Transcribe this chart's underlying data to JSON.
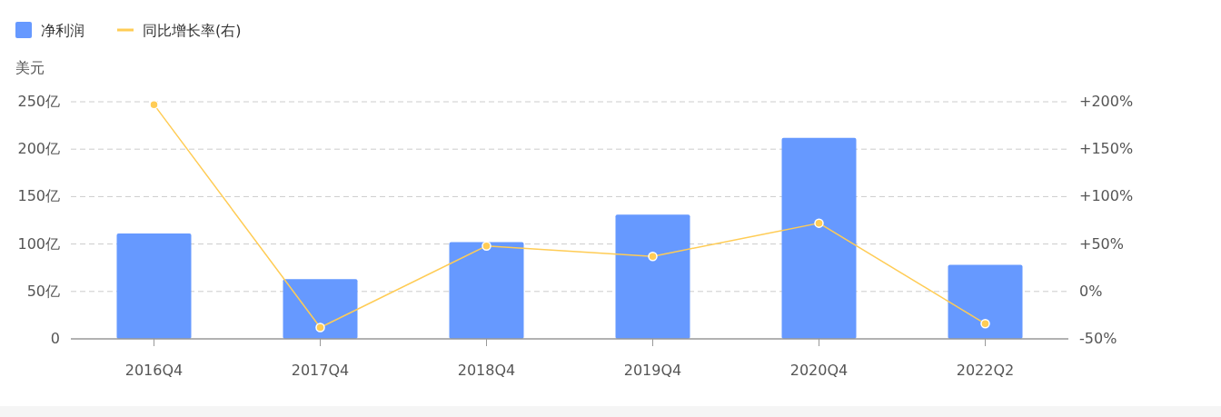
{
  "chart_data": {
    "type": "bar",
    "ylabel": "美元",
    "categories": [
      "2016Q4",
      "2017Q4",
      "2018Q4",
      "2019Q4",
      "2020Q4",
      "2022Q2"
    ],
    "series": [
      {
        "name": "净利润",
        "color": "#6699ff",
        "values": [
          111,
          63,
          102,
          131,
          212,
          78
        ]
      },
      {
        "name": "同比增长率(右)",
        "type": "line",
        "axis": "y2",
        "color": "#ffcc55",
        "marker": "circle",
        "values": [
          197,
          -38,
          48,
          37,
          72,
          -34
        ]
      }
    ],
    "ylim": [
      0,
      250
    ],
    "yticks": [
      0,
      {
        "value": 50,
        "label": "50亿"
      },
      {
        "value": 100,
        "label": "100亿"
      },
      {
        "value": 150,
        "label": "150亿"
      },
      {
        "value": 200,
        "label": "200亿"
      },
      {
        "value": 250,
        "label": "250亿"
      }
    ],
    "y2lim": [
      -50,
      200
    ],
    "y2ticks": [
      {
        "value": -50,
        "label": "-50%"
      },
      {
        "value": 0,
        "label": "0%"
      },
      {
        "value": 50,
        "label": "+50%"
      },
      {
        "value": 100,
        "label": "+100%"
      },
      {
        "value": 150,
        "label": "+150%"
      },
      {
        "value": 200,
        "label": "+200%"
      }
    ],
    "grid": "y",
    "legend": "top left"
  }
}
